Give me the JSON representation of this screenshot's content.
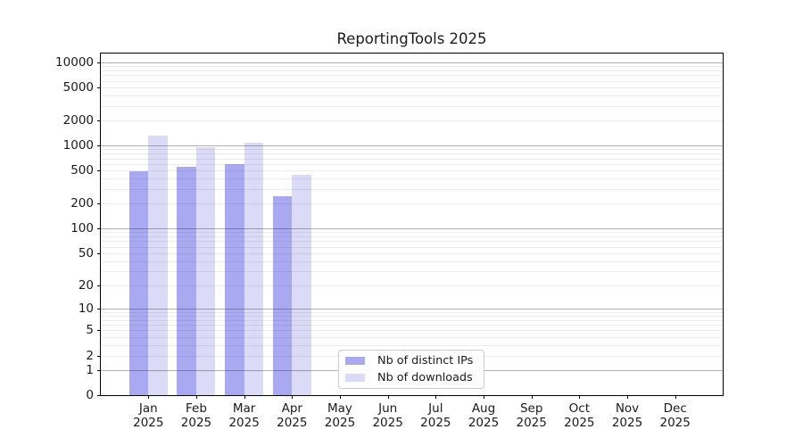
{
  "figure": {
    "title": "ReportingTools 2025"
  },
  "chart_data": {
    "type": "bar",
    "title": "ReportingTools 2025",
    "categories": [
      "Jan 2025",
      "Feb 2025",
      "Mar 2025",
      "Apr 2025",
      "May 2025",
      "Jun 2025",
      "Jul 2025",
      "Aug 2025",
      "Sep 2025",
      "Oct 2025",
      "Nov 2025",
      "Dec 2025"
    ],
    "series": [
      {
        "name": "Nb of distinct IPs",
        "color": "#a9a9f2",
        "values": [
          495,
          550,
          600,
          243,
          0,
          0,
          0,
          0,
          0,
          0,
          0,
          0
        ]
      },
      {
        "name": "Nb of downloads",
        "color": "#dbdbf8",
        "values": [
          1330,
          965,
          1075,
          440,
          0,
          0,
          0,
          0,
          0,
          0,
          0,
          0
        ]
      }
    ],
    "y_ticks": [
      0,
      1,
      2,
      5,
      10,
      20,
      50,
      100,
      200,
      500,
      1000,
      2000,
      5000,
      10000
    ],
    "y_scale": "log10(1+x)",
    "ylim": [
      0,
      10000
    ],
    "xlabel": "",
    "ylabel": "",
    "grid": "on",
    "legend_position": "lower center",
    "tick_color": "#000000",
    "grid_major_color": "#b3b3b3",
    "grid_minor_color": "#ececec"
  }
}
